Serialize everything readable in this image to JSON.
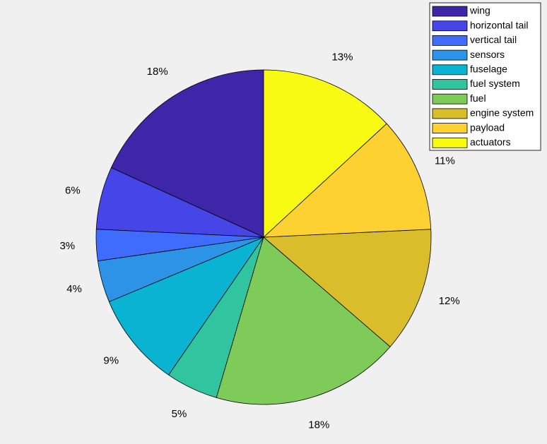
{
  "chart_data": {
    "type": "pie",
    "categories": [
      "wing",
      "horizontal tail",
      "vertical tail",
      "sensors",
      "fuselage",
      "fuel system",
      "fuel",
      "engine system",
      "payload",
      "actuators"
    ],
    "values": [
      18,
      6,
      3,
      4,
      9,
      5,
      18,
      12,
      11,
      13
    ],
    "value_labels": [
      "18%",
      "6%",
      "3%",
      "4%",
      "9%",
      "5%",
      "18%",
      "12%",
      "11%",
      "13%"
    ],
    "colors": [
      "#3e26a8",
      "#4646e8",
      "#3f6cfc",
      "#2c93e6",
      "#0bb3d3",
      "#30c59f",
      "#7fcb5a",
      "#dabd2b",
      "#fdd131",
      "#f8fa14"
    ],
    "legend": "top-right"
  }
}
